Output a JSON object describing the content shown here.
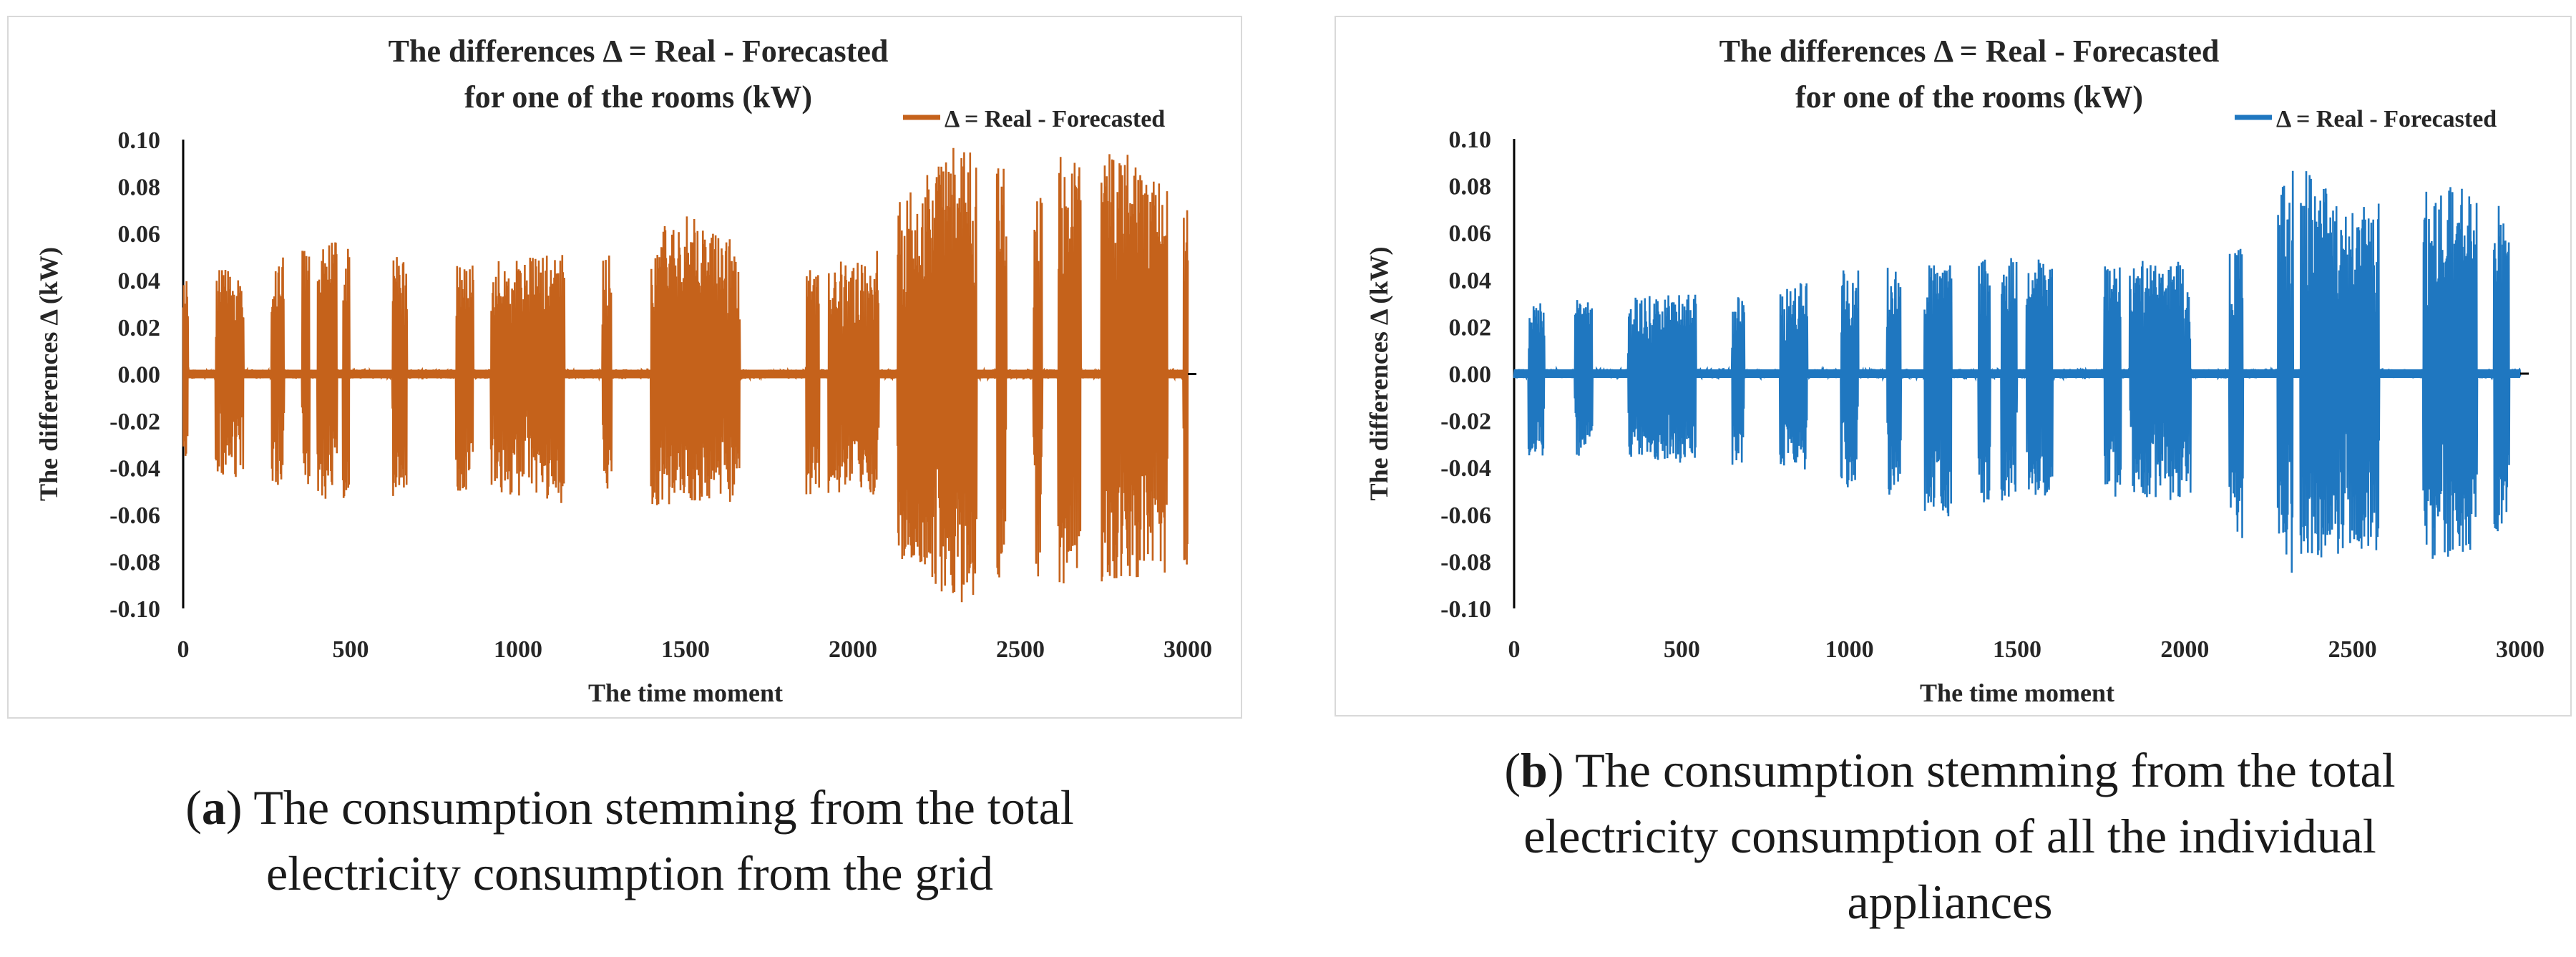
{
  "chart_data": [
    {
      "id": "a",
      "type": "line",
      "title_line1": "The differences Δ = Real - Forecasted",
      "title_line2": "for one of the rooms (kW)",
      "legend": "Δ = Real - Forecasted",
      "xlabel": "The time moment",
      "ylabel": "The differences Δ (kW)",
      "xlim": [
        0,
        3000
      ],
      "ylim": [
        -0.1,
        0.1
      ],
      "xticks": [
        "0",
        "500",
        "1000",
        "1500",
        "2000",
        "2500",
        "3000"
      ],
      "yticks": [
        "0.10",
        "0.08",
        "0.06",
        "0.04",
        "0.02",
        "0.00",
        "-0.02",
        "-0.04",
        "-0.06",
        "-0.08",
        "-0.10"
      ],
      "color": "#c5621b",
      "envelope": [
        {
          "x": 0,
          "max": 0.04,
          "min": -0.04
        },
        {
          "x": 250,
          "max": 0.05,
          "min": -0.05
        },
        {
          "x": 500,
          "max": 0.058,
          "min": -0.055
        },
        {
          "x": 750,
          "max": 0.046,
          "min": -0.05
        },
        {
          "x": 1000,
          "max": 0.05,
          "min": -0.052
        },
        {
          "x": 1250,
          "max": 0.052,
          "min": -0.058
        },
        {
          "x": 1500,
          "max": 0.068,
          "min": -0.055
        },
        {
          "x": 1750,
          "max": 0.05,
          "min": -0.055
        },
        {
          "x": 2050,
          "max": 0.048,
          "min": -0.05
        },
        {
          "x": 2150,
          "max": 0.078,
          "min": -0.08
        },
        {
          "x": 2320,
          "max": 0.099,
          "min": -0.1
        },
        {
          "x": 2500,
          "max": 0.09,
          "min": -0.088
        },
        {
          "x": 2770,
          "max": 0.099,
          "min": -0.092
        },
        {
          "x": 3000,
          "max": 0.075,
          "min": -0.083
        }
      ],
      "caption_label": "a",
      "caption_line1": " The consumption stemming from the total",
      "caption_line2": "electricity consumption from the grid"
    },
    {
      "id": "b",
      "type": "line",
      "title_line1": "The differences Δ = Real - Forecasted",
      "title_line2": "for one of the rooms (kW)",
      "legend": "Δ = Real - Forecasted",
      "xlabel": "The time moment",
      "ylabel": "The differences Δ (kW)",
      "xlim": [
        0,
        3000
      ],
      "ylim": [
        -0.1,
        0.1
      ],
      "xticks": [
        "0",
        "500",
        "1000",
        "1500",
        "2000",
        "2500",
        "3000"
      ],
      "yticks": [
        "0.10",
        "0.08",
        "0.06",
        "0.04",
        "0.02",
        "0.00",
        "-0.02",
        "-0.04",
        "-0.06",
        "-0.08",
        "-0.10"
      ],
      "color": "#1f77c0",
      "envelope": [
        {
          "x": 0,
          "max": 0.03,
          "min": -0.036
        },
        {
          "x": 250,
          "max": 0.032,
          "min": -0.035
        },
        {
          "x": 500,
          "max": 0.034,
          "min": -0.038
        },
        {
          "x": 750,
          "max": 0.033,
          "min": -0.04
        },
        {
          "x": 950,
          "max": 0.046,
          "min": -0.046
        },
        {
          "x": 1250,
          "max": 0.047,
          "min": -0.062
        },
        {
          "x": 1500,
          "max": 0.05,
          "min": -0.055
        },
        {
          "x": 1750,
          "max": 0.048,
          "min": -0.052
        },
        {
          "x": 2050,
          "max": 0.048,
          "min": -0.055
        },
        {
          "x": 2200,
          "max": 0.06,
          "min": -0.075
        },
        {
          "x": 2320,
          "max": 0.094,
          "min": -0.085
        },
        {
          "x": 2500,
          "max": 0.07,
          "min": -0.075
        },
        {
          "x": 2770,
          "max": 0.083,
          "min": -0.08
        },
        {
          "x": 3000,
          "max": 0.067,
          "min": -0.066
        }
      ],
      "caption_label": "b",
      "caption_line1": " The consumption stemming from the total",
      "caption_line2": "electricity consumption of all the individual",
      "caption_line3": "appliances"
    }
  ]
}
